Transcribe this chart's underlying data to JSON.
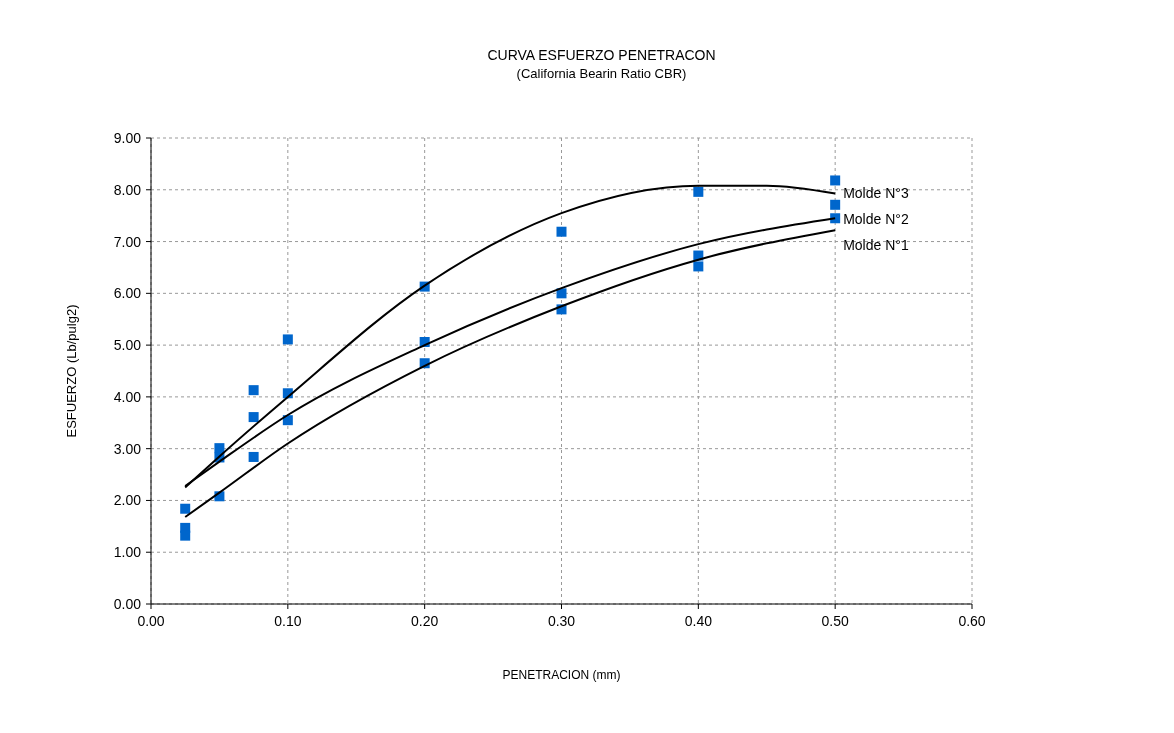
{
  "chart_data": {
    "type": "scatter",
    "title": "CURVA ESFUERZO PENETRACON",
    "subtitle": "(California Bearin Ratio CBR)",
    "xlabel": "PENETRACION (mm)",
    "ylabel": "ESFUERZO (Lb/pulg2)",
    "xlim": [
      0,
      0.6
    ],
    "ylim": [
      0,
      9
    ],
    "xticks": [
      {
        "value": 0,
        "label": "0.00"
      },
      {
        "value": 0.1,
        "label": "0.10"
      },
      {
        "value": 0.2,
        "label": "0.20"
      },
      {
        "value": 0.3,
        "label": "0.30"
      },
      {
        "value": 0.4,
        "label": "0.40"
      },
      {
        "value": 0.5,
        "label": "0.50"
      },
      {
        "value": 0.6,
        "label": "0.60"
      }
    ],
    "yticks": [
      {
        "value": 0,
        "label": "0.00"
      },
      {
        "value": 1,
        "label": "1.00"
      },
      {
        "value": 2,
        "label": "2.00"
      },
      {
        "value": 3,
        "label": "3.00"
      },
      {
        "value": 4,
        "label": "4.00"
      },
      {
        "value": 5,
        "label": "5.00"
      },
      {
        "value": 6,
        "label": "6.00"
      },
      {
        "value": 7,
        "label": "7.00"
      },
      {
        "value": 8,
        "label": "8.00"
      },
      {
        "value": 9,
        "label": "9.00"
      }
    ],
    "grid": true,
    "series": [
      {
        "color": "#0066cc",
        "marker": "square",
        "x": [
          0.025,
          0.025,
          0.025,
          0.05,
          0.05,
          0.05,
          0.075,
          0.075,
          0.075,
          0.1,
          0.1,
          0.1,
          0.2,
          0.2,
          0.2,
          0.3,
          0.3,
          0.3,
          0.4,
          0.4,
          0.4,
          0.5,
          0.5,
          0.5
        ],
        "values": [
          1.84,
          1.47,
          1.32,
          3.01,
          2.83,
          2.08,
          4.13,
          3.61,
          2.84,
          5.11,
          4.07,
          3.55,
          6.13,
          5.06,
          4.65,
          7.19,
          6.0,
          5.69,
          7.96,
          6.73,
          6.52,
          8.18,
          7.71,
          7.45
        ]
      },
      {
        "type": "line",
        "name": "Molde N°3",
        "color": "#000000",
        "marker": "none",
        "line_style": "solid",
        "x": [
          0.025,
          0.05,
          0.1,
          0.2,
          0.3,
          0.4,
          0.45,
          0.5
        ],
        "values": [
          2.25,
          2.85,
          4.0,
          6.15,
          7.55,
          8.08,
          8.08,
          7.93
        ]
      },
      {
        "type": "line",
        "name": "Molde N°2",
        "color": "#000000",
        "marker": "none",
        "line_style": "solid",
        "x": [
          0.025,
          0.05,
          0.1,
          0.2,
          0.3,
          0.4,
          0.5
        ],
        "values": [
          2.28,
          2.75,
          3.65,
          5.0,
          6.1,
          6.95,
          7.45
        ]
      },
      {
        "type": "line",
        "name": "Molde N°1",
        "color": "#000000",
        "marker": "none",
        "line_style": "solid",
        "x": [
          0.025,
          0.05,
          0.1,
          0.2,
          0.3,
          0.4,
          0.5
        ],
        "values": [
          1.68,
          2.15,
          3.1,
          4.6,
          5.75,
          6.65,
          7.22
        ]
      }
    ]
  }
}
